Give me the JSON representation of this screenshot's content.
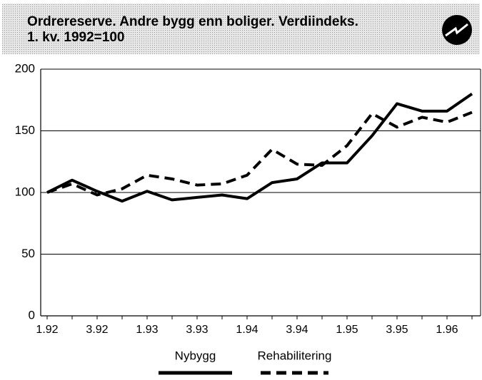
{
  "chart_data": {
    "type": "line",
    "title_lines": [
      "Ordrereserve. Andre bygg enn boliger. Verdiindeks.",
      "1. kv. 1992=100"
    ],
    "categories": [
      "1.92",
      null,
      "3.92",
      null,
      "1.93",
      null,
      "3.93",
      null,
      "1.94",
      null,
      "3.94",
      null,
      "1.95",
      null,
      "3.95",
      null,
      "1.96",
      null
    ],
    "series": [
      {
        "name": "Nybygg",
        "color": "#000000",
        "dash": "solid",
        "values": [
          100,
          110,
          101,
          93,
          101,
          94,
          96,
          98,
          95,
          108,
          111,
          124,
          124,
          146,
          172,
          166,
          166,
          180
        ]
      },
      {
        "name": "Rehabilitering",
        "color": "#000000",
        "dash": "dashed",
        "values": [
          100,
          107,
          98,
          103,
          114,
          111,
          106,
          107,
          114,
          135,
          123,
          122,
          138,
          164,
          153,
          161,
          157,
          165
        ]
      }
    ],
    "ylim": [
      0,
      200
    ],
    "yticks": [
      0,
      50,
      100,
      150,
      200
    ],
    "grid": true,
    "legend": "bottom"
  }
}
